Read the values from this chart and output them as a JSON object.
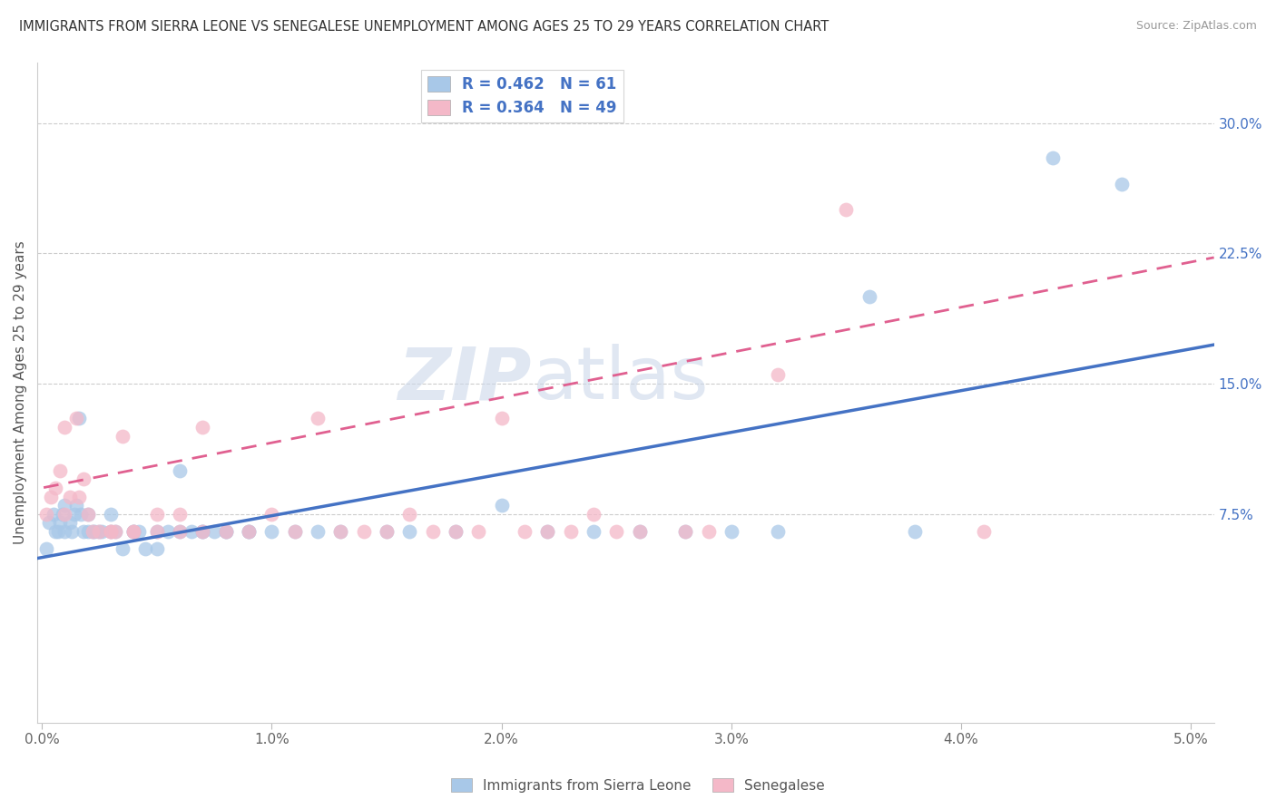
{
  "title": "IMMIGRANTS FROM SIERRA LEONE VS SENEGALESE UNEMPLOYMENT AMONG AGES 25 TO 29 YEARS CORRELATION CHART",
  "source": "Source: ZipAtlas.com",
  "ylabel": "Unemployment Among Ages 25 to 29 years",
  "xlim": [
    -0.0002,
    0.051
  ],
  "ylim": [
    -0.045,
    0.335
  ],
  "xtick_vals": [
    0.0,
    0.01,
    0.02,
    0.03,
    0.04,
    0.05
  ],
  "xtick_labels": [
    "0.0%",
    "1.0%",
    "2.0%",
    "3.0%",
    "4.0%",
    "5.0%"
  ],
  "ytick_labels": [
    "7.5%",
    "15.0%",
    "22.5%",
    "30.0%"
  ],
  "ytick_values": [
    0.075,
    0.15,
    0.225,
    0.3
  ],
  "color_blue": "#a8c8e8",
  "color_pink": "#f4b8c8",
  "color_blue_line": "#4472c4",
  "color_pink_line": "#e06090",
  "R_blue": 0.462,
  "N_blue": 61,
  "R_pink": 0.364,
  "N_pink": 49,
  "legend_label_blue": "Immigrants from Sierra Leone",
  "legend_label_pink": "Senegalese",
  "watermark_zip": "ZIP",
  "watermark_atlas": "atlas",
  "blue_intercept": 0.05,
  "blue_slope": 2.4,
  "pink_intercept": 0.09,
  "pink_slope": 2.6,
  "blue_scatter_x": [
    0.0002,
    0.0003,
    0.0005,
    0.0006,
    0.0007,
    0.0008,
    0.0009,
    0.001,
    0.001,
    0.0012,
    0.0013,
    0.0014,
    0.0015,
    0.0016,
    0.0017,
    0.0018,
    0.002,
    0.002,
    0.0022,
    0.0023,
    0.0025,
    0.0026,
    0.003,
    0.003,
    0.0032,
    0.0035,
    0.004,
    0.004,
    0.0042,
    0.0045,
    0.005,
    0.005,
    0.0055,
    0.006,
    0.006,
    0.0065,
    0.007,
    0.007,
    0.0075,
    0.008,
    0.008,
    0.009,
    0.009,
    0.01,
    0.011,
    0.012,
    0.013,
    0.015,
    0.016,
    0.018,
    0.02,
    0.022,
    0.024,
    0.026,
    0.028,
    0.03,
    0.032,
    0.036,
    0.038,
    0.044,
    0.047
  ],
  "blue_scatter_y": [
    0.055,
    0.07,
    0.075,
    0.065,
    0.065,
    0.07,
    0.075,
    0.08,
    0.065,
    0.07,
    0.065,
    0.075,
    0.08,
    0.13,
    0.075,
    0.065,
    0.065,
    0.075,
    0.065,
    0.065,
    0.065,
    0.065,
    0.075,
    0.065,
    0.065,
    0.055,
    0.065,
    0.065,
    0.065,
    0.055,
    0.055,
    0.065,
    0.065,
    0.1,
    0.065,
    0.065,
    0.065,
    0.065,
    0.065,
    0.065,
    0.065,
    0.065,
    0.065,
    0.065,
    0.065,
    0.065,
    0.065,
    0.065,
    0.065,
    0.065,
    0.08,
    0.065,
    0.065,
    0.065,
    0.065,
    0.065,
    0.065,
    0.2,
    0.065,
    0.28,
    0.265
  ],
  "pink_scatter_x": [
    0.0002,
    0.0004,
    0.0006,
    0.0008,
    0.001,
    0.001,
    0.0012,
    0.0015,
    0.0016,
    0.0018,
    0.002,
    0.0022,
    0.0025,
    0.003,
    0.003,
    0.0032,
    0.0035,
    0.004,
    0.004,
    0.005,
    0.005,
    0.006,
    0.006,
    0.007,
    0.007,
    0.008,
    0.009,
    0.01,
    0.011,
    0.012,
    0.013,
    0.014,
    0.015,
    0.016,
    0.017,
    0.018,
    0.019,
    0.02,
    0.021,
    0.022,
    0.023,
    0.024,
    0.025,
    0.026,
    0.028,
    0.029,
    0.032,
    0.035,
    0.041
  ],
  "pink_scatter_y": [
    0.075,
    0.085,
    0.09,
    0.1,
    0.075,
    0.125,
    0.085,
    0.13,
    0.085,
    0.095,
    0.075,
    0.065,
    0.065,
    0.065,
    0.065,
    0.065,
    0.12,
    0.065,
    0.065,
    0.075,
    0.065,
    0.065,
    0.075,
    0.065,
    0.125,
    0.065,
    0.065,
    0.075,
    0.065,
    0.13,
    0.065,
    0.065,
    0.065,
    0.075,
    0.065,
    0.065,
    0.065,
    0.13,
    0.065,
    0.065,
    0.065,
    0.075,
    0.065,
    0.065,
    0.065,
    0.065,
    0.155,
    0.25,
    0.065
  ]
}
